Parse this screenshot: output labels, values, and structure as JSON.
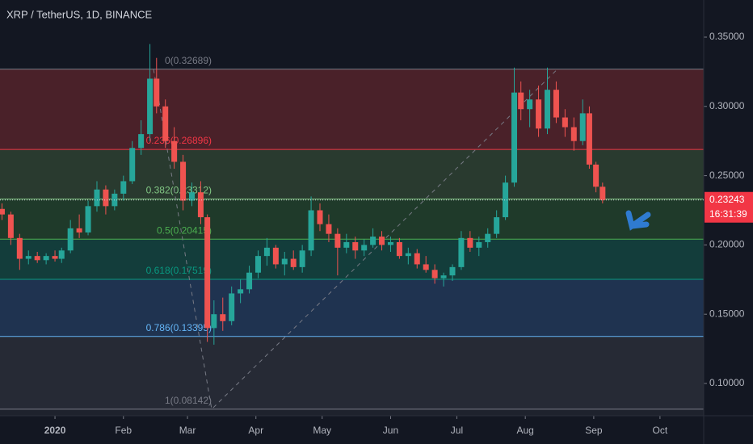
{
  "chart_data": {
    "type": "candlestick",
    "title": "XRP / TetherUS, 1D, BINANCE",
    "x": [
      -24,
      -20,
      -16,
      -12,
      -8,
      -4,
      0,
      3,
      7,
      11,
      15,
      19,
      23,
      27,
      31,
      35,
      39,
      43,
      46,
      50,
      54,
      58,
      62,
      66,
      69,
      72,
      76,
      80,
      84,
      88,
      92,
      96,
      100,
      104,
      108,
      112,
      116,
      120,
      124,
      128,
      132,
      136,
      140,
      144,
      148,
      152,
      156,
      160,
      164,
      168,
      172,
      176,
      180,
      184,
      188,
      192,
      196,
      200,
      204,
      208,
      211,
      215,
      219,
      223,
      227,
      231,
      235,
      239,
      242,
      245,
      248
    ],
    "open": [
      0.226,
      0.222,
      0.205,
      0.19,
      0.192,
      0.189,
      0.192,
      0.19,
      0.196,
      0.212,
      0.209,
      0.228,
      0.24,
      0.228,
      0.237,
      0.246,
      0.27,
      0.28,
      0.32,
      0.3,
      0.275,
      0.26,
      0.232,
      0.238,
      0.22,
      0.14,
      0.15,
      0.145,
      0.165,
      0.168,
      0.18,
      0.192,
      0.198,
      0.186,
      0.19,
      0.184,
      0.196,
      0.225,
      0.215,
      0.208,
      0.198,
      0.202,
      0.196,
      0.2,
      0.206,
      0.2,
      0.202,
      0.192,
      0.194,
      0.186,
      0.182,
      0.176,
      0.178,
      0.184,
      0.205,
      0.198,
      0.202,
      0.208,
      0.22,
      0.245,
      0.31,
      0.298,
      0.305,
      0.284,
      0.312,
      0.292,
      0.285,
      0.275,
      0.295,
      0.258,
      0.242
    ],
    "high": [
      0.23,
      0.224,
      0.208,
      0.196,
      0.195,
      0.194,
      0.196,
      0.198,
      0.218,
      0.222,
      0.232,
      0.246,
      0.243,
      0.24,
      0.25,
      0.275,
      0.29,
      0.345,
      0.335,
      0.305,
      0.285,
      0.265,
      0.245,
      0.246,
      0.222,
      0.16,
      0.162,
      0.17,
      0.175,
      0.185,
      0.196,
      0.205,
      0.2,
      0.195,
      0.196,
      0.2,
      0.235,
      0.23,
      0.222,
      0.212,
      0.208,
      0.206,
      0.204,
      0.212,
      0.21,
      0.206,
      0.205,
      0.198,
      0.197,
      0.192,
      0.186,
      0.18,
      0.186,
      0.21,
      0.21,
      0.206,
      0.212,
      0.225,
      0.25,
      0.328,
      0.318,
      0.312,
      0.315,
      0.328,
      0.318,
      0.298,
      0.292,
      0.305,
      0.3,
      0.26,
      0.245
    ],
    "low": [
      0.218,
      0.2,
      0.182,
      0.186,
      0.187,
      0.186,
      0.188,
      0.187,
      0.194,
      0.205,
      0.207,
      0.224,
      0.222,
      0.225,
      0.232,
      0.244,
      0.265,
      0.275,
      0.295,
      0.27,
      0.255,
      0.225,
      0.228,
      0.215,
      0.13,
      0.128,
      0.138,
      0.142,
      0.158,
      0.165,
      0.176,
      0.185,
      0.183,
      0.178,
      0.182,
      0.18,
      0.192,
      0.21,
      0.202,
      0.178,
      0.194,
      0.19,
      0.192,
      0.198,
      0.196,
      0.195,
      0.19,
      0.186,
      0.183,
      0.18,
      0.172,
      0.17,
      0.174,
      0.182,
      0.195,
      0.192,
      0.198,
      0.205,
      0.218,
      0.242,
      0.29,
      0.285,
      0.278,
      0.28,
      0.288,
      0.278,
      0.268,
      0.272,
      0.255,
      0.238,
      0.23
    ],
    "close": [
      0.222,
      0.205,
      0.19,
      0.192,
      0.189,
      0.192,
      0.19,
      0.196,
      0.212,
      0.209,
      0.228,
      0.24,
      0.228,
      0.237,
      0.246,
      0.27,
      0.28,
      0.32,
      0.3,
      0.275,
      0.26,
      0.232,
      0.238,
      0.22,
      0.14,
      0.15,
      0.145,
      0.165,
      0.168,
      0.18,
      0.192,
      0.198,
      0.186,
      0.19,
      0.184,
      0.196,
      0.225,
      0.215,
      0.208,
      0.198,
      0.202,
      0.196,
      0.2,
      0.206,
      0.2,
      0.202,
      0.192,
      0.194,
      0.186,
      0.182,
      0.176,
      0.178,
      0.184,
      0.205,
      0.198,
      0.202,
      0.208,
      0.22,
      0.245,
      0.31,
      0.298,
      0.305,
      0.284,
      0.312,
      0.292,
      0.285,
      0.275,
      0.295,
      0.258,
      0.242,
      0.23243
    ],
    "up_color": "#26a69a",
    "down_color": "#ef5350",
    "xlim": [
      -24.9,
      293.8
    ],
    "xticks": [
      {
        "value": 0,
        "label": "2020"
      },
      {
        "value": 31,
        "label": "Feb"
      },
      {
        "value": 60,
        "label": "Mar"
      },
      {
        "value": 91,
        "label": "Apr"
      },
      {
        "value": 121,
        "label": "May"
      },
      {
        "value": 152,
        "label": "Jun"
      },
      {
        "value": 182,
        "label": "Jul"
      },
      {
        "value": 213,
        "label": "Aug"
      },
      {
        "value": 244,
        "label": "Sep"
      },
      {
        "value": 274,
        "label": "Oct"
      }
    ],
    "ylim": [
      0.0767,
      0.3768
    ],
    "yticks": [
      {
        "value": 0.1,
        "label": "0.10000"
      },
      {
        "value": 0.15,
        "label": "0.15000"
      },
      {
        "value": 0.2,
        "label": "0.20000"
      },
      {
        "value": 0.25,
        "label": "0.25000"
      },
      {
        "value": 0.3,
        "label": "0.30000"
      },
      {
        "value": 0.35,
        "label": "0.35000"
      }
    ],
    "fib_levels": [
      {
        "label": "0(0.32689)",
        "value": 0.32689,
        "color": "#787b86",
        "zone": "#4a2129"
      },
      {
        "label": "0.236(0.26896)",
        "value": 0.26896,
        "color": "#f23645",
        "zone": "#293a2f"
      },
      {
        "label": "0.382(0.23312)",
        "value": 0.23312,
        "color": "#81c784",
        "zone": "#1f3a2a"
      },
      {
        "label": "0.5(0.20415)",
        "value": 0.20415,
        "color": "#4caf50",
        "zone": "#133d3b"
      },
      {
        "label": "0.618(0.17519)",
        "value": 0.17519,
        "color": "#089981",
        "zone": "#1f3350"
      },
      {
        "label": "0.786(0.13395)",
        "value": 0.13395,
        "color": "#64b5f6",
        "zone": "#262a35"
      },
      {
        "label": "1(0.08142)",
        "value": 0.08142,
        "color": "#787b86"
      }
    ],
    "last_price": {
      "value": 0.23243,
      "label": "0.23243",
      "countdown": "16:31:39",
      "color": "#f23645"
    }
  }
}
